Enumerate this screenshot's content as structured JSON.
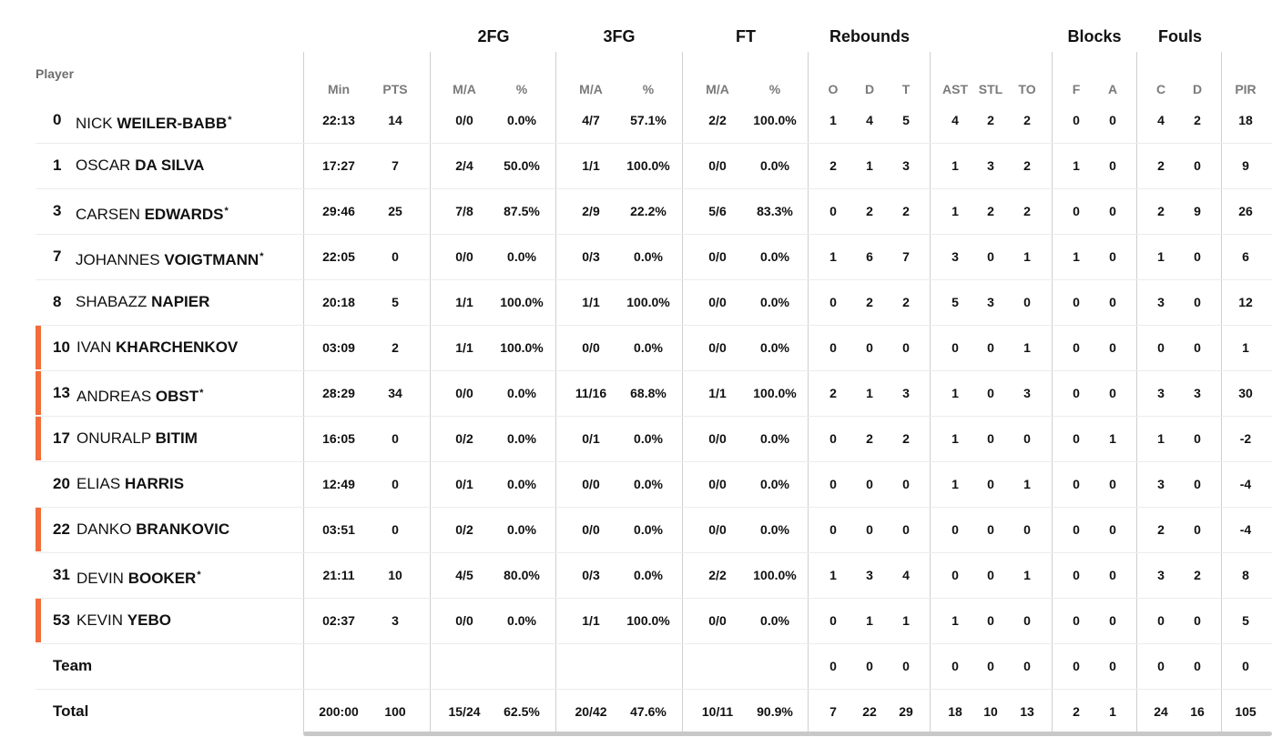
{
  "header": {
    "player_label": "Player",
    "groups": {
      "fg2": "2FG",
      "fg3": "3FG",
      "ft": "FT",
      "rebounds": "Rebounds",
      "blocks": "Blocks",
      "fouls": "Fouls"
    },
    "columns": [
      "Min",
      "PTS",
      "M/A",
      "%",
      "M/A",
      "%",
      "M/A",
      "%",
      "O",
      "D",
      "T",
      "AST",
      "STL",
      "TO",
      "F",
      "A",
      "C",
      "D",
      "PIR"
    ]
  },
  "players": [
    {
      "number": "0",
      "first": "NICK",
      "last": "WEILER-BABB",
      "star": true,
      "bar": false,
      "stats": [
        "22:13",
        "14",
        "0/0",
        "0.0%",
        "4/7",
        "57.1%",
        "2/2",
        "100.0%",
        "1",
        "4",
        "5",
        "4",
        "2",
        "2",
        "0",
        "0",
        "4",
        "2",
        "18"
      ]
    },
    {
      "number": "1",
      "first": "OSCAR",
      "last": "DA SILVA",
      "star": false,
      "bar": false,
      "stats": [
        "17:27",
        "7",
        "2/4",
        "50.0%",
        "1/1",
        "100.0%",
        "0/0",
        "0.0%",
        "2",
        "1",
        "3",
        "1",
        "3",
        "2",
        "1",
        "0",
        "2",
        "0",
        "9"
      ]
    },
    {
      "number": "3",
      "first": "CARSEN",
      "last": "EDWARDS",
      "star": true,
      "bar": false,
      "stats": [
        "29:46",
        "25",
        "7/8",
        "87.5%",
        "2/9",
        "22.2%",
        "5/6",
        "83.3%",
        "0",
        "2",
        "2",
        "1",
        "2",
        "2",
        "0",
        "0",
        "2",
        "9",
        "26"
      ]
    },
    {
      "number": "7",
      "first": "JOHANNES",
      "last": "VOIGTMANN",
      "star": true,
      "bar": false,
      "stats": [
        "22:05",
        "0",
        "0/0",
        "0.0%",
        "0/3",
        "0.0%",
        "0/0",
        "0.0%",
        "1",
        "6",
        "7",
        "3",
        "0",
        "1",
        "1",
        "0",
        "1",
        "0",
        "6"
      ]
    },
    {
      "number": "8",
      "first": "SHABAZZ",
      "last": "NAPIER",
      "star": false,
      "bar": false,
      "stats": [
        "20:18",
        "5",
        "1/1",
        "100.0%",
        "1/1",
        "100.0%",
        "0/0",
        "0.0%",
        "0",
        "2",
        "2",
        "5",
        "3",
        "0",
        "0",
        "0",
        "3",
        "0",
        "12"
      ]
    },
    {
      "number": "10",
      "first": "IVAN",
      "last": "KHARCHENKOV",
      "star": false,
      "bar": true,
      "stats": [
        "03:09",
        "2",
        "1/1",
        "100.0%",
        "0/0",
        "0.0%",
        "0/0",
        "0.0%",
        "0",
        "0",
        "0",
        "0",
        "0",
        "1",
        "0",
        "0",
        "0",
        "0",
        "1"
      ]
    },
    {
      "number": "13",
      "first": "ANDREAS",
      "last": "OBST",
      "star": true,
      "bar": true,
      "stats": [
        "28:29",
        "34",
        "0/0",
        "0.0%",
        "11/16",
        "68.8%",
        "1/1",
        "100.0%",
        "2",
        "1",
        "3",
        "1",
        "0",
        "3",
        "0",
        "0",
        "3",
        "3",
        "30"
      ]
    },
    {
      "number": "17",
      "first": "ONURALP",
      "last": "BITIM",
      "star": false,
      "bar": true,
      "stats": [
        "16:05",
        "0",
        "0/2",
        "0.0%",
        "0/1",
        "0.0%",
        "0/0",
        "0.0%",
        "0",
        "2",
        "2",
        "1",
        "0",
        "0",
        "0",
        "1",
        "1",
        "0",
        "-2"
      ]
    },
    {
      "number": "20",
      "first": "ELIAS",
      "last": "HARRIS",
      "star": false,
      "bar": false,
      "stats": [
        "12:49",
        "0",
        "0/1",
        "0.0%",
        "0/0",
        "0.0%",
        "0/0",
        "0.0%",
        "0",
        "0",
        "0",
        "1",
        "0",
        "1",
        "0",
        "0",
        "3",
        "0",
        "-4"
      ]
    },
    {
      "number": "22",
      "first": "DANKO",
      "last": "BRANKOVIC",
      "star": false,
      "bar": true,
      "stats": [
        "03:51",
        "0",
        "0/2",
        "0.0%",
        "0/0",
        "0.0%",
        "0/0",
        "0.0%",
        "0",
        "0",
        "0",
        "0",
        "0",
        "0",
        "0",
        "0",
        "2",
        "0",
        "-4"
      ]
    },
    {
      "number": "31",
      "first": "DEVIN",
      "last": "BOOKER",
      "star": true,
      "bar": false,
      "stats": [
        "21:11",
        "10",
        "4/5",
        "80.0%",
        "0/3",
        "0.0%",
        "2/2",
        "100.0%",
        "1",
        "3",
        "4",
        "0",
        "0",
        "1",
        "0",
        "0",
        "3",
        "2",
        "8"
      ]
    },
    {
      "number": "53",
      "first": "KEVIN",
      "last": "YEBO",
      "star": false,
      "bar": true,
      "stats": [
        "02:37",
        "3",
        "0/0",
        "0.0%",
        "1/1",
        "100.0%",
        "0/0",
        "0.0%",
        "0",
        "1",
        "1",
        "1",
        "0",
        "0",
        "0",
        "0",
        "0",
        "0",
        "5"
      ]
    }
  ],
  "team_row": {
    "label": "Team",
    "stats": [
      "",
      "",
      "",
      "",
      "",
      "",
      "",
      "",
      "0",
      "0",
      "0",
      "0",
      "0",
      "0",
      "0",
      "0",
      "0",
      "0",
      "0"
    ]
  },
  "total_row": {
    "label": "Total",
    "stats": [
      "200:00",
      "100",
      "15/24",
      "62.5%",
      "20/42",
      "47.6%",
      "10/11",
      "90.9%",
      "7",
      "22",
      "29",
      "18",
      "10",
      "13",
      "2",
      "1",
      "24",
      "16",
      "105"
    ]
  },
  "colors": {
    "reserve_bar": "#f26b3a",
    "header_gray": "#7a7a7a",
    "divider": "#cfcfcf",
    "row_separator": "#ececec"
  },
  "star_symbol": "*"
}
